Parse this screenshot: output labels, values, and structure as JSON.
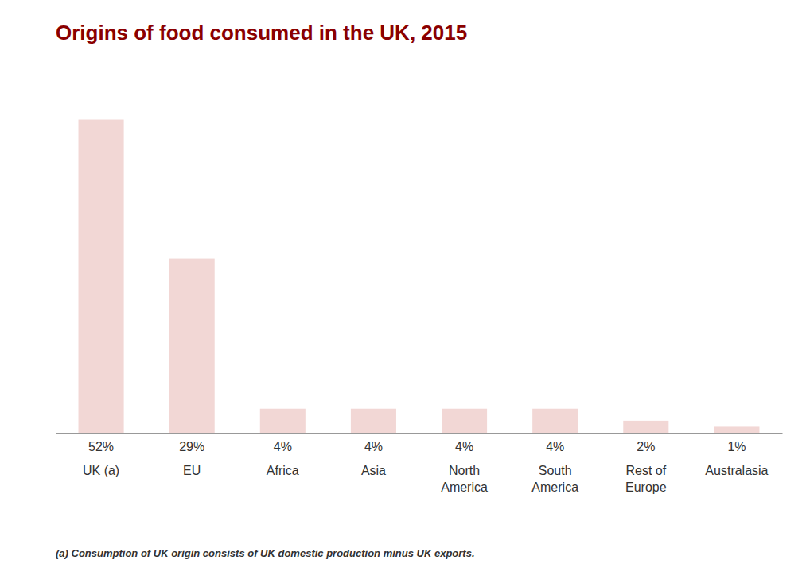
{
  "chart_data": {
    "type": "bar",
    "title": "Origins of food consumed in the UK, 2015",
    "categories": [
      "UK (a)",
      "EU",
      "Africa",
      "Asia",
      "North\nAmerica",
      "South\nAmerica",
      "Rest of\nEurope",
      "Australasia"
    ],
    "values": [
      52,
      29,
      4,
      4,
      4,
      4,
      2,
      1
    ],
    "value_labels": [
      "52%",
      "29%",
      "4%",
      "4%",
      "4%",
      "4%",
      "2%",
      "1%"
    ],
    "data_labels": true,
    "color": "#F2D7D5",
    "ylim": [
      0,
      60
    ],
    "yticks": [],
    "grid": false,
    "tick_labels": "x",
    "annotations": [
      "(a) Consumption of UK origin consists of UK domestic production minus UK exports."
    ]
  }
}
